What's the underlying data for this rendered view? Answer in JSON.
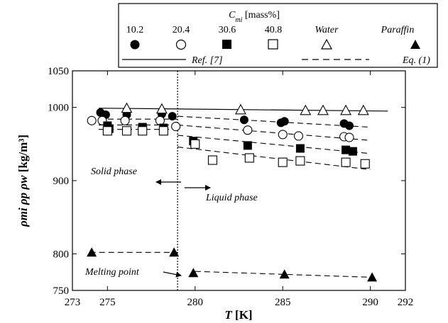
{
  "chart_data": {
    "type": "scatter",
    "title": "",
    "xlabel": {
      "var": "T",
      "unit": " [K]"
    },
    "ylabel": {
      "var": "ρmi ρp ρw",
      "unit": " [kg/m³]"
    },
    "xlim": [
      273,
      292
    ],
    "ylim": [
      750,
      1050
    ],
    "xticks": [
      273,
      275,
      280,
      285,
      290,
      292
    ],
    "yticks": [
      750,
      800,
      900,
      1000,
      1050
    ],
    "legend": {
      "placement": "top",
      "title": {
        "var": "C",
        "sub": "mi",
        "unit": " [mass%]"
      },
      "marker_labels": [
        "10.2",
        "20.4",
        "30.6",
        "40.8",
        "Water",
        "Paraffin"
      ],
      "line_labels": [
        "Ref. [7]",
        "Eq. (1)"
      ]
    },
    "series": [
      {
        "name": "10.2",
        "marker": "filled-circle",
        "points": [
          [
            274.6,
            993
          ],
          [
            274.9,
            990
          ],
          [
            276.1,
            990
          ],
          [
            278.1,
            991
          ],
          [
            278.7,
            988
          ],
          [
            282.8,
            983
          ],
          [
            284.9,
            979
          ],
          [
            285.1,
            981
          ],
          [
            288.5,
            978
          ],
          [
            288.8,
            975
          ]
        ]
      },
      {
        "name": "20.4",
        "marker": "open-circle",
        "points": [
          [
            274.1,
            982
          ],
          [
            274.7,
            982
          ],
          [
            276.0,
            982
          ],
          [
            278.0,
            982
          ],
          [
            278.9,
            974
          ],
          [
            283.0,
            969
          ],
          [
            285.0,
            963
          ],
          [
            285.9,
            961
          ],
          [
            288.5,
            960
          ],
          [
            288.8,
            959
          ]
        ]
      },
      {
        "name": "30.6",
        "marker": "filled-square",
        "points": [
          [
            275.0,
            975
          ],
          [
            275.1,
            971
          ],
          [
            277.0,
            973
          ],
          [
            278.2,
            972
          ],
          [
            279.9,
            954
          ],
          [
            283.0,
            948
          ],
          [
            286.0,
            944
          ],
          [
            288.6,
            942
          ],
          [
            289.0,
            940
          ]
        ]
      },
      {
        "name": "40.8",
        "marker": "open-square",
        "points": [
          [
            275.0,
            968
          ],
          [
            276.1,
            968
          ],
          [
            277.0,
            968
          ],
          [
            278.2,
            968
          ],
          [
            280.0,
            950
          ],
          [
            281.0,
            928
          ],
          [
            283.1,
            931
          ],
          [
            285.0,
            925
          ],
          [
            286.0,
            927
          ],
          [
            288.6,
            925
          ],
          [
            289.7,
            923
          ]
        ]
      },
      {
        "name": "Water",
        "marker": "open-triangle",
        "points": [
          [
            276.1,
            999
          ],
          [
            278.1,
            998
          ],
          [
            282.6,
            997
          ],
          [
            286.3,
            996
          ],
          [
            287.3,
            996
          ],
          [
            288.6,
            996
          ],
          [
            289.6,
            996
          ]
        ]
      },
      {
        "name": "Paraffin",
        "marker": "filled-triangle",
        "points": [
          [
            274.1,
            802
          ],
          [
            278.8,
            802
          ],
          [
            279.9,
            774
          ],
          [
            285.1,
            772
          ],
          [
            290.1,
            768
          ]
        ]
      }
    ],
    "reference_line": {
      "label": "Ref. [7]",
      "style": "solid",
      "x": [
        274.5,
        291
      ],
      "y": [
        999,
        995
      ]
    },
    "fit_lines": [
      {
        "style": "dashed",
        "x": [
          274.5,
          279
        ],
        "y": [
          984,
          984
        ]
      },
      {
        "style": "dashed",
        "x": [
          274.5,
          279
        ],
        "y": [
          976,
          976
        ]
      },
      {
        "style": "dashed",
        "x": [
          274.5,
          279
        ],
        "y": [
          970,
          970
        ]
      },
      {
        "style": "dashed",
        "x": [
          279,
          290
        ],
        "y": [
          988,
          973
        ]
      },
      {
        "style": "dashed",
        "x": [
          279,
          290
        ],
        "y": [
          976,
          955
        ]
      },
      {
        "style": "dashed",
        "x": [
          279,
          290
        ],
        "y": [
          962,
          937
        ]
      },
      {
        "style": "dashed",
        "x": [
          279,
          290
        ],
        "y": [
          946,
          915
        ]
      },
      {
        "style": "dashed",
        "x": [
          274,
          279
        ],
        "y": [
          802,
          802
        ]
      },
      {
        "style": "dashed",
        "x": [
          280,
          290
        ],
        "y": [
          776,
          768
        ]
      }
    ],
    "melting_line": {
      "style": "dotted",
      "x": 279
    },
    "annotations": {
      "solid": "Solid phase",
      "liquid": "Liquid phase",
      "melting": "Melting point"
    }
  }
}
